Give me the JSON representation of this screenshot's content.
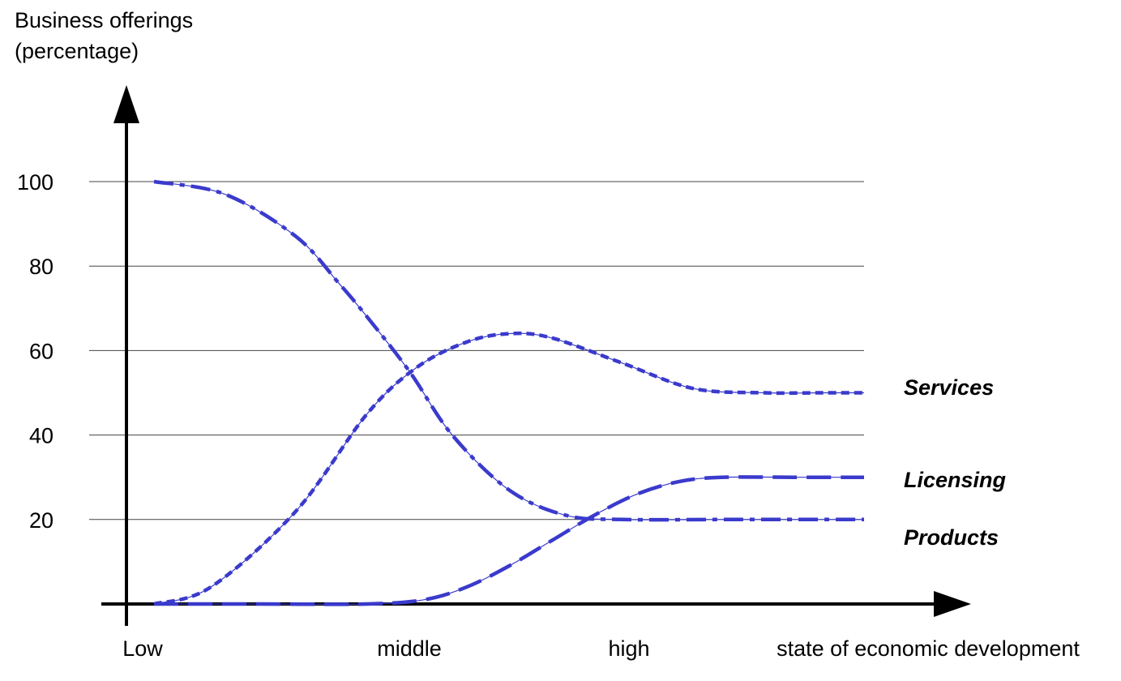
{
  "chart_data": {
    "type": "line",
    "ylabel_line1": "Business offerings",
    "ylabel_line2": "(percentage)",
    "xlabel": "state of economic development",
    "ylim": [
      0,
      100
    ],
    "yticks": [
      20,
      40,
      60,
      80,
      100
    ],
    "x_categories": [
      "Low",
      "middle",
      "high"
    ],
    "xlim": [
      0,
      1
    ],
    "grid": true,
    "colors": {
      "series": "#3a3acc",
      "axis": "#000000",
      "grid": "#444444"
    },
    "series": [
      {
        "name": "Services",
        "x": [
          0.0,
          0.08,
          0.2,
          0.3,
          0.37,
          0.44,
          0.5,
          0.56,
          0.66,
          0.76,
          0.86,
          0.94,
          1.0
        ],
        "y": [
          0,
          4,
          22,
          45,
          56,
          62,
          64,
          63,
          57,
          51,
          50,
          50,
          50
        ]
      },
      {
        "name": "Licensing",
        "x": [
          0.0,
          0.15,
          0.3,
          0.38,
          0.44,
          0.5,
          0.56,
          0.62,
          0.68,
          0.74,
          0.8,
          0.9,
          1.0
        ],
        "y": [
          0,
          0,
          0,
          1,
          4,
          9,
          15,
          21,
          26,
          29,
          30,
          30,
          30
        ]
      },
      {
        "name": "Products",
        "x": [
          0.0,
          0.1,
          0.2,
          0.26,
          0.3,
          0.36,
          0.42,
          0.5,
          0.58,
          0.66,
          0.8,
          1.0
        ],
        "y": [
          100,
          97,
          87,
          76,
          68,
          55,
          40,
          27,
          21,
          20,
          20,
          20
        ]
      }
    ]
  }
}
